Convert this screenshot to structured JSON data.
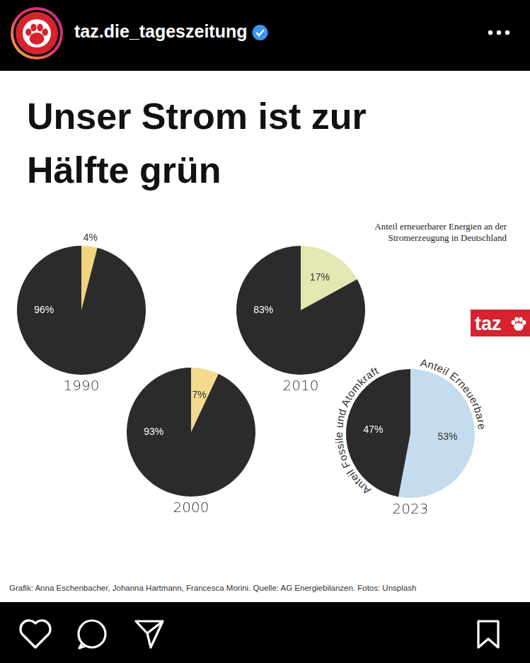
{
  "header": {
    "account": "taz.die_tageszeitung"
  },
  "title": "Unser Strom ist zur Hälfte grün",
  "subtitle": "Anteil erneuerbarer Energien an der Stromerzeugung in Deutschland",
  "logo": "taz",
  "credit": "Grafik: Anna Eschenbacher, Johanna Hartmann, Francesca Morini. Quelle: AG Energiebilanzen. Fotos: Unsplash",
  "chart_data": [
    {
      "type": "pie",
      "title": "1990",
      "categories": [
        null,
        null
      ],
      "values": [
        4,
        96
      ],
      "value_labels": [
        "4%",
        "96%"
      ],
      "colors": [
        "#f1d47f",
        "#2b2b2b"
      ],
      "data_labels": true
    },
    {
      "type": "pie",
      "title": "2000",
      "categories": [
        null,
        null
      ],
      "values": [
        7,
        93
      ],
      "value_labels": [
        "7%",
        "93%"
      ],
      "colors": [
        "#f3da8e",
        "#2b2b2b"
      ],
      "data_labels": true
    },
    {
      "type": "pie",
      "title": "2010",
      "categories": [
        null,
        null
      ],
      "values": [
        17,
        83
      ],
      "value_labels": [
        "17%",
        "83%"
      ],
      "colors": [
        "#e4e8b0",
        "#2b2b2b"
      ],
      "data_labels": true
    },
    {
      "type": "pie",
      "title": "2023",
      "categories": [
        "Anteil Erneuerbare",
        "Anteil Fossile und Atomkraft"
      ],
      "values": [
        53,
        47
      ],
      "value_labels": [
        "53%",
        "47%"
      ],
      "colors": [
        "#c4dcee",
        "#2b2b2b"
      ],
      "data_labels": true
    }
  ]
}
